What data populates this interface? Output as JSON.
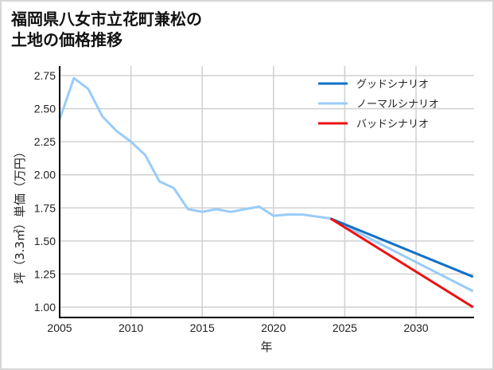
{
  "title_line1": "福岡県八女市立花町兼松の",
  "title_line2": "土地の価格推移",
  "xlabel": "年",
  "ylabel": "坪（3.3㎡）単価（万円）",
  "colors": {
    "good": "#1170c8",
    "normal": "#99ccf8",
    "bad": "#ee1111",
    "grid": "#d0d0d0",
    "axis": "#000000"
  },
  "chart_data": {
    "type": "line",
    "title": "福岡県八女市立花町兼松の土地の価格推移",
    "xlabel": "年",
    "ylabel": "坪（3.3㎡）単価（万円）",
    "xlim": [
      2005,
      2034
    ],
    "ylim": [
      0.92,
      2.82
    ],
    "xticks": [
      2005,
      2010,
      2015,
      2020,
      2025,
      2030
    ],
    "yticks": [
      1.0,
      1.25,
      1.5,
      1.75,
      2.0,
      2.25,
      2.5,
      2.75
    ],
    "ytick_labels": [
      "1.00",
      "1.25",
      "1.50",
      "1.75",
      "2.00",
      "2.25",
      "2.50",
      "2.75"
    ],
    "grid": true,
    "legend_position": "upper right",
    "series": [
      {
        "name": "グッドシナリオ",
        "color": "#1170c8",
        "x": [
          2024,
          2034
        ],
        "values": [
          1.67,
          1.23
        ]
      },
      {
        "name": "ノーマルシナリオ",
        "color": "#99ccf8",
        "x": [
          2005,
          2006,
          2007,
          2008,
          2009,
          2010,
          2011,
          2012,
          2013,
          2014,
          2015,
          2016,
          2017,
          2018,
          2019,
          2020,
          2021,
          2022,
          2023,
          2024,
          2034
        ],
        "values": [
          2.42,
          2.73,
          2.65,
          2.44,
          2.33,
          2.25,
          2.15,
          1.95,
          1.9,
          1.74,
          1.72,
          1.74,
          1.72,
          1.74,
          1.76,
          1.69,
          1.7,
          1.7,
          1.685,
          1.67,
          1.12
        ]
      },
      {
        "name": "バッドシナリオ",
        "color": "#ee1111",
        "x": [
          2024,
          2034
        ],
        "values": [
          1.67,
          1.0
        ]
      }
    ]
  }
}
